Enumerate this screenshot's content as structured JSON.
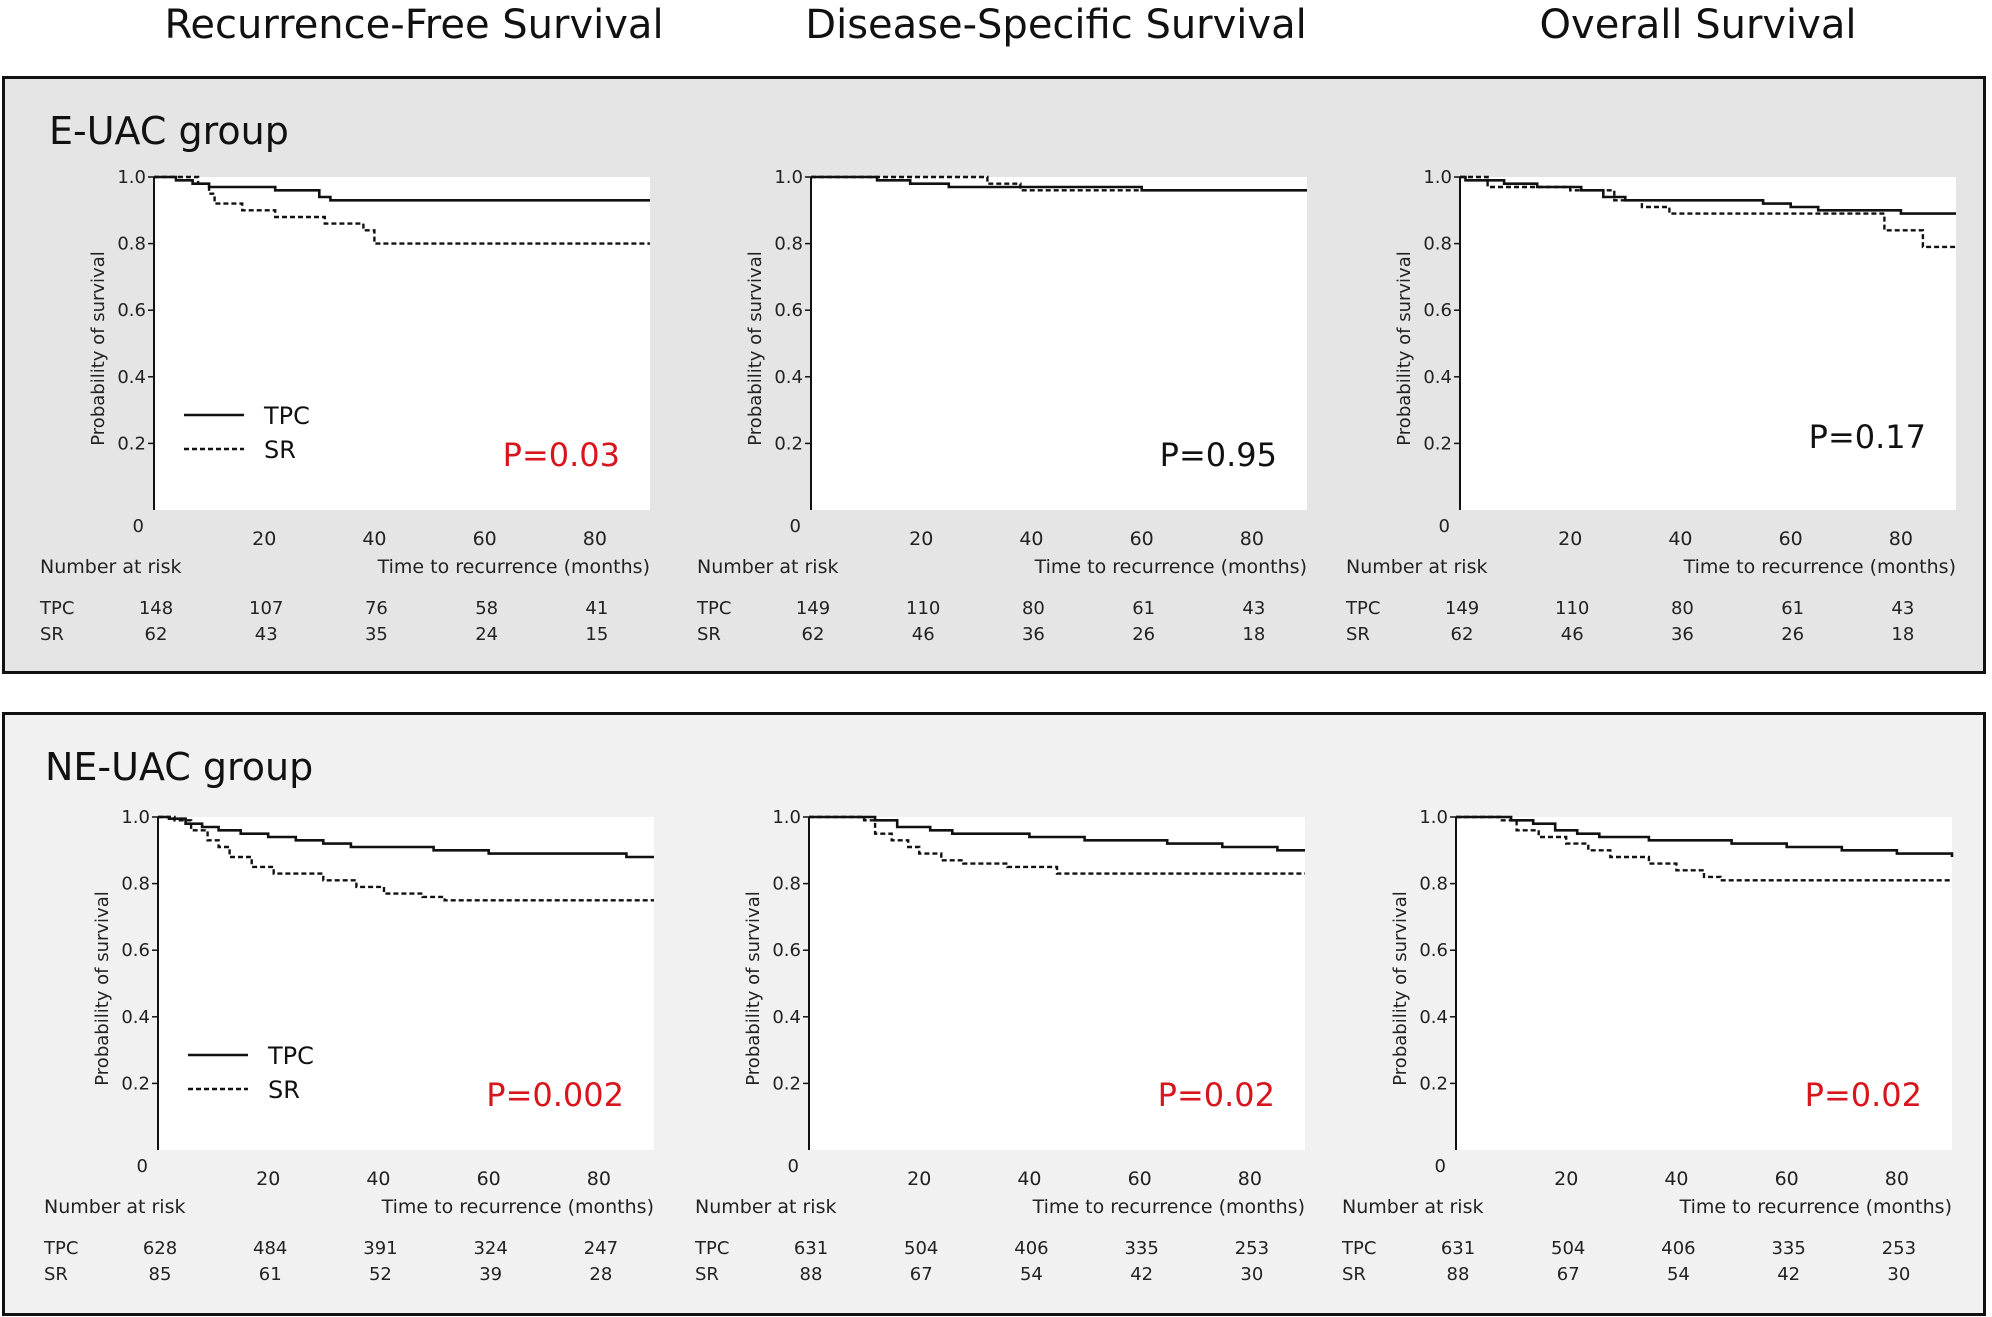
{
  "column_titles": [
    "Recurrence-Free Survival",
    "Disease-Specific Survival",
    "Overall Survival"
  ],
  "groups": [
    {
      "title": "E-UAC group"
    },
    {
      "title": "NE-UAC group"
    }
  ],
  "colors": {
    "significant_p": "#d8141c",
    "nonsignificant_p": "#111111",
    "line": "#111111"
  },
  "chart_data": [
    {
      "type": "line",
      "group": "E-UAC group",
      "title": "Recurrence-Free Survival",
      "ylabel": "Probability of survival",
      "xlabel": "Time to recurrence (months)",
      "xlim": [
        0,
        90
      ],
      "ylim": [
        0,
        1.0
      ],
      "xticks": [
        20,
        40,
        60,
        80
      ],
      "yticks": [
        "1.0",
        "0.8",
        "0.6",
        "0.4",
        "0.2"
      ],
      "origin_label": "0",
      "legend": [
        "TPC",
        "SR"
      ],
      "show_legend": true,
      "p_value": "P=0.03",
      "p_significant": true,
      "p_position": "bottom-right",
      "series": [
        {
          "name": "TPC",
          "style": "solid",
          "points": [
            [
              0,
              1.0
            ],
            [
              4,
              0.99
            ],
            [
              7,
              0.98
            ],
            [
              10,
              0.97
            ],
            [
              22,
              0.96
            ],
            [
              30,
              0.94
            ],
            [
              32,
              0.93
            ],
            [
              90,
              0.93
            ]
          ]
        },
        {
          "name": "SR",
          "style": "dashed",
          "points": [
            [
              0,
              1.0
            ],
            [
              8,
              0.98
            ],
            [
              10,
              0.95
            ],
            [
              11,
              0.92
            ],
            [
              16,
              0.9
            ],
            [
              22,
              0.88
            ],
            [
              31,
              0.86
            ],
            [
              38,
              0.84
            ],
            [
              40,
              0.8
            ],
            [
              90,
              0.8
            ]
          ]
        }
      ],
      "risk_table": {
        "title": "Number at risk",
        "times": [
          0,
          20,
          40,
          60,
          80
        ],
        "rows": [
          {
            "label": "TPC",
            "values": [
              148,
              107,
              76,
              58,
              41
            ]
          },
          {
            "label": "SR",
            "values": [
              62,
              43,
              35,
              24,
              15
            ]
          }
        ]
      }
    },
    {
      "type": "line",
      "group": "E-UAC group",
      "title": "Disease-Specific Survival",
      "ylabel": "Probability of survival",
      "xlabel": "Time to recurrence (months)",
      "xlim": [
        0,
        90
      ],
      "ylim": [
        0,
        1.0
      ],
      "xticks": [
        20,
        40,
        60,
        80
      ],
      "yticks": [
        "1.0",
        "0.8",
        "0.6",
        "0.4",
        "0.2"
      ],
      "origin_label": "0",
      "legend": [
        "TPC",
        "SR"
      ],
      "show_legend": false,
      "p_value": "P=0.95",
      "p_significant": false,
      "p_position": "bottom-right",
      "series": [
        {
          "name": "TPC",
          "style": "solid",
          "points": [
            [
              0,
              1.0
            ],
            [
              12,
              0.99
            ],
            [
              18,
              0.98
            ],
            [
              25,
              0.97
            ],
            [
              60,
              0.96
            ],
            [
              90,
              0.96
            ]
          ]
        },
        {
          "name": "SR",
          "style": "dashed",
          "points": [
            [
              0,
              1.0
            ],
            [
              12,
              1.0
            ],
            [
              32,
              0.98
            ],
            [
              38,
              0.96
            ],
            [
              90,
              0.96
            ]
          ]
        }
      ],
      "risk_table": {
        "title": "Number at risk",
        "times": [
          0,
          20,
          40,
          60,
          80
        ],
        "rows": [
          {
            "label": "TPC",
            "values": [
              149,
              110,
              80,
              61,
              43
            ]
          },
          {
            "label": "SR",
            "values": [
              62,
              46,
              36,
              26,
              18
            ]
          }
        ]
      }
    },
    {
      "type": "line",
      "group": "E-UAC group",
      "title": "Overall Survival",
      "ylabel": "Probability of survival",
      "xlabel": "Time to recurrence (months)",
      "xlim": [
        0,
        90
      ],
      "ylim": [
        0,
        1.0
      ],
      "xticks": [
        20,
        40,
        60,
        80
      ],
      "yticks": [
        "1.0",
        "0.8",
        "0.6",
        "0.4",
        "0.2"
      ],
      "origin_label": "0",
      "legend": [
        "TPC",
        "SR"
      ],
      "show_legend": false,
      "p_value": "P=0.17",
      "p_significant": false,
      "p_position": "right",
      "series": [
        {
          "name": "TPC",
          "style": "solid",
          "points": [
            [
              0,
              1.0
            ],
            [
              1,
              0.99
            ],
            [
              8,
              0.98
            ],
            [
              14,
              0.97
            ],
            [
              22,
              0.96
            ],
            [
              26,
              0.94
            ],
            [
              30,
              0.93
            ],
            [
              55,
              0.92
            ],
            [
              60,
              0.91
            ],
            [
              65,
              0.9
            ],
            [
              80,
              0.89
            ],
            [
              90,
              0.89
            ]
          ]
        },
        {
          "name": "SR",
          "style": "dashed",
          "points": [
            [
              0,
              1.0
            ],
            [
              5,
              0.97
            ],
            [
              15,
              0.97
            ],
            [
              20,
              0.96
            ],
            [
              28,
              0.93
            ],
            [
              33,
              0.91
            ],
            [
              38,
              0.89
            ],
            [
              75,
              0.89
            ],
            [
              77,
              0.84
            ],
            [
              84,
              0.79
            ],
            [
              90,
              0.79
            ]
          ]
        }
      ],
      "risk_table": {
        "title": "Number at risk",
        "times": [
          0,
          20,
          40,
          60,
          80
        ],
        "rows": [
          {
            "label": "TPC",
            "values": [
              149,
              110,
              80,
              61,
              43
            ]
          },
          {
            "label": "SR",
            "values": [
              62,
              46,
              36,
              26,
              18
            ]
          }
        ]
      }
    },
    {
      "type": "line",
      "group": "NE-UAC group",
      "title": "Recurrence-Free Survival",
      "ylabel": "Probability of survival",
      "xlabel": "Time to recurrence (months)",
      "xlim": [
        0,
        90
      ],
      "ylim": [
        0,
        1.0
      ],
      "xticks": [
        20,
        40,
        60,
        80
      ],
      "yticks": [
        "1.0",
        "0.8",
        "0.6",
        "0.4",
        "0.2"
      ],
      "origin_label": "0",
      "legend": [
        "TPC",
        "SR"
      ],
      "show_legend": true,
      "p_value": "P=0.002",
      "p_significant": true,
      "p_position": "bottom-right",
      "series": [
        {
          "name": "TPC",
          "style": "solid",
          "points": [
            [
              0,
              1.0
            ],
            [
              2,
              0.995
            ],
            [
              5,
              0.98
            ],
            [
              8,
              0.97
            ],
            [
              11,
              0.96
            ],
            [
              15,
              0.95
            ],
            [
              20,
              0.94
            ],
            [
              25,
              0.93
            ],
            [
              30,
              0.92
            ],
            [
              35,
              0.91
            ],
            [
              50,
              0.9
            ],
            [
              60,
              0.89
            ],
            [
              75,
              0.89
            ],
            [
              85,
              0.88
            ],
            [
              90,
              0.88
            ]
          ]
        },
        {
          "name": "SR",
          "style": "dashed",
          "points": [
            [
              0,
              1.0
            ],
            [
              3,
              0.99
            ],
            [
              6,
              0.96
            ],
            [
              9,
              0.93
            ],
            [
              11,
              0.91
            ],
            [
              13,
              0.88
            ],
            [
              17,
              0.85
            ],
            [
              21,
              0.83
            ],
            [
              30,
              0.81
            ],
            [
              36,
              0.79
            ],
            [
              41,
              0.77
            ],
            [
              48,
              0.76
            ],
            [
              52,
              0.75
            ],
            [
              90,
              0.75
            ]
          ]
        }
      ],
      "risk_table": {
        "title": "Number at risk",
        "times": [
          0,
          20,
          40,
          60,
          80
        ],
        "rows": [
          {
            "label": "TPC",
            "values": [
              628,
              484,
              391,
              324,
              247
            ]
          },
          {
            "label": "SR",
            "values": [
              85,
              61,
              52,
              39,
              28
            ]
          }
        ]
      }
    },
    {
      "type": "line",
      "group": "NE-UAC group",
      "title": "Disease-Specific Survival",
      "ylabel": "Probability of survival",
      "xlabel": "Time to recurrence (months)",
      "xlim": [
        0,
        90
      ],
      "ylim": [
        0,
        1.0
      ],
      "xticks": [
        20,
        40,
        60,
        80
      ],
      "yticks": [
        "1.0",
        "0.8",
        "0.6",
        "0.4",
        "0.2"
      ],
      "origin_label": "0",
      "legend": [
        "TPC",
        "SR"
      ],
      "show_legend": false,
      "p_value": "P=0.02",
      "p_significant": true,
      "p_position": "bottom-right",
      "series": [
        {
          "name": "TPC",
          "style": "solid",
          "points": [
            [
              0,
              1.0
            ],
            [
              8,
              1.0
            ],
            [
              12,
              0.99
            ],
            [
              16,
              0.97
            ],
            [
              22,
              0.96
            ],
            [
              26,
              0.95
            ],
            [
              40,
              0.94
            ],
            [
              50,
              0.93
            ],
            [
              65,
              0.92
            ],
            [
              75,
              0.91
            ],
            [
              85,
              0.9
            ],
            [
              90,
              0.9
            ]
          ]
        },
        {
          "name": "SR",
          "style": "dashed",
          "points": [
            [
              0,
              1.0
            ],
            [
              10,
              0.99
            ],
            [
              12,
              0.95
            ],
            [
              15,
              0.93
            ],
            [
              18,
              0.91
            ],
            [
              20,
              0.89
            ],
            [
              24,
              0.87
            ],
            [
              28,
              0.86
            ],
            [
              36,
              0.85
            ],
            [
              45,
              0.83
            ],
            [
              90,
              0.83
            ]
          ]
        }
      ],
      "risk_table": {
        "title": "Number at risk",
        "times": [
          0,
          20,
          40,
          60,
          80
        ],
        "rows": [
          {
            "label": "TPC",
            "values": [
              631,
              504,
              406,
              335,
              253
            ]
          },
          {
            "label": "SR",
            "values": [
              88,
              67,
              54,
              42,
              30
            ]
          }
        ]
      }
    },
    {
      "type": "line",
      "group": "NE-UAC group",
      "title": "Overall Survival",
      "ylabel": "Probability of survival",
      "xlabel": "Time to recurrence (months)",
      "xlim": [
        0,
        90
      ],
      "ylim": [
        0,
        1.0
      ],
      "xticks": [
        20,
        40,
        60,
        80
      ],
      "yticks": [
        "1.0",
        "0.8",
        "0.6",
        "0.4",
        "0.2"
      ],
      "origin_label": "0",
      "legend": [
        "TPC",
        "SR"
      ],
      "show_legend": false,
      "p_value": "P=0.02",
      "p_significant": true,
      "p_position": "bottom-right",
      "series": [
        {
          "name": "TPC",
          "style": "solid",
          "points": [
            [
              0,
              1.0
            ],
            [
              10,
              0.99
            ],
            [
              14,
              0.98
            ],
            [
              18,
              0.96
            ],
            [
              22,
              0.95
            ],
            [
              26,
              0.94
            ],
            [
              35,
              0.93
            ],
            [
              50,
              0.92
            ],
            [
              60,
              0.91
            ],
            [
              70,
              0.9
            ],
            [
              80,
              0.89
            ],
            [
              90,
              0.88
            ]
          ]
        },
        {
          "name": "SR",
          "style": "dashed",
          "points": [
            [
              0,
              1.0
            ],
            [
              8,
              0.99
            ],
            [
              11,
              0.96
            ],
            [
              15,
              0.94
            ],
            [
              20,
              0.92
            ],
            [
              24,
              0.9
            ],
            [
              28,
              0.88
            ],
            [
              35,
              0.86
            ],
            [
              40,
              0.84
            ],
            [
              45,
              0.82
            ],
            [
              48,
              0.81
            ],
            [
              90,
              0.81
            ]
          ]
        }
      ],
      "risk_table": {
        "title": "Number at risk",
        "times": [
          0,
          20,
          40,
          60,
          80
        ],
        "rows": [
          {
            "label": "TPC",
            "values": [
              631,
              504,
              406,
              335,
              253
            ]
          },
          {
            "label": "SR",
            "values": [
              88,
              67,
              54,
              42,
              30
            ]
          }
        ]
      }
    }
  ]
}
